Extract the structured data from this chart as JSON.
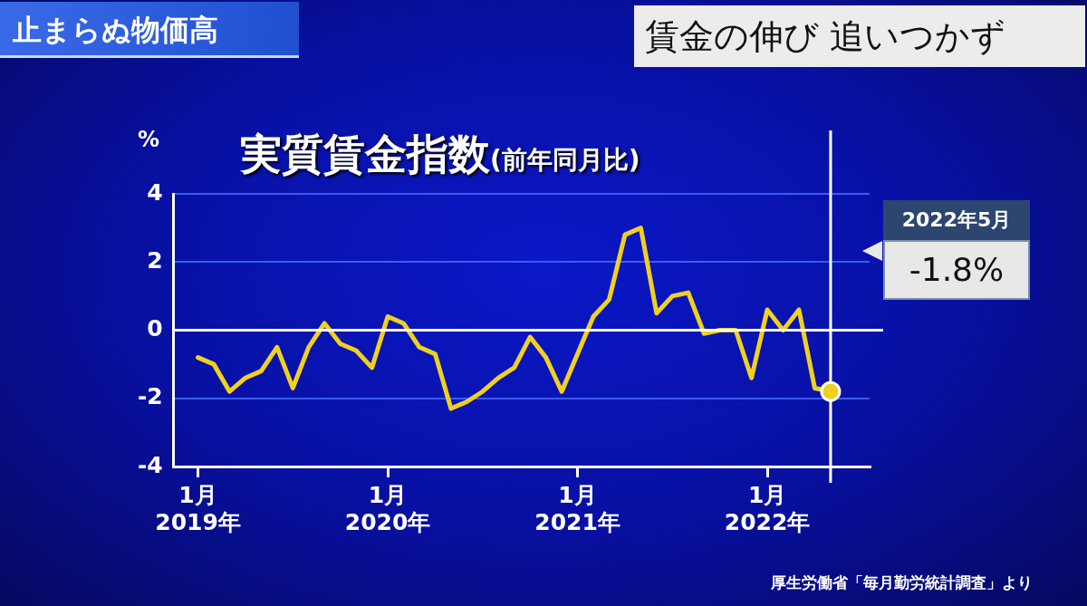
{
  "chart_data": {
    "type": "line",
    "title": "実質賃金指数",
    "subtitle": "(前年同月比)",
    "ylabel": "%",
    "x": [
      "2019-01",
      "2019-02",
      "2019-03",
      "2019-04",
      "2019-05",
      "2019-06",
      "2019-07",
      "2019-08",
      "2019-09",
      "2019-10",
      "2019-11",
      "2019-12",
      "2020-01",
      "2020-02",
      "2020-03",
      "2020-04",
      "2020-05",
      "2020-06",
      "2020-07",
      "2020-08",
      "2020-09",
      "2020-10",
      "2020-11",
      "2020-12",
      "2021-01",
      "2021-02",
      "2021-03",
      "2021-04",
      "2021-05",
      "2021-06",
      "2021-07",
      "2021-08",
      "2021-09",
      "2021-10",
      "2021-11",
      "2021-12",
      "2022-01",
      "2022-02",
      "2022-03",
      "2022-04",
      "2022-05"
    ],
    "series": [
      {
        "color": "#f0d020",
        "values": [
          -0.8,
          -1.0,
          -1.8,
          -1.4,
          -1.2,
          -0.5,
          -1.7,
          -0.5,
          0.2,
          -0.4,
          -0.6,
          -1.1,
          0.4,
          0.2,
          -0.5,
          -0.7,
          -2.3,
          -2.1,
          -1.8,
          -1.4,
          -1.1,
          -0.2,
          -0.8,
          -1.8,
          -0.7,
          0.4,
          0.9,
          2.8,
          3.0,
          0.5,
          1.0,
          1.1,
          -0.1,
          0.0,
          0.0,
          -1.4,
          0.6,
          0.0,
          0.6,
          -1.7,
          -1.8
        ]
      }
    ],
    "xlim": [
      "2018-11-15",
      "2022-07-15"
    ],
    "xticks": [
      {
        "value": "2019-01",
        "label": "1月\n2019年"
      },
      {
        "value": "2020-01",
        "label": "1月\n2020年"
      },
      {
        "value": "2021-01",
        "label": "1月\n2021年"
      },
      {
        "value": "2022-01",
        "label": "1月\n2022年"
      }
    ],
    "ylim": [
      -4,
      4
    ],
    "yticks": [
      -4,
      -2,
      0,
      2,
      4
    ],
    "grid": "y",
    "legend": false,
    "marker": "none",
    "ref_lines": [
      {
        "axis": "y",
        "value": 0,
        "color": "#ffffff"
      },
      {
        "axis": "x",
        "value": "2022-05",
        "color": "#ffffff"
      }
    ],
    "annotations": [
      "止まらぬ物価高",
      "賃金の伸び 追いつかず",
      "厚生労働省「毎月勤労統計調査」より",
      "2022年5月",
      "-1.8%"
    ]
  }
}
